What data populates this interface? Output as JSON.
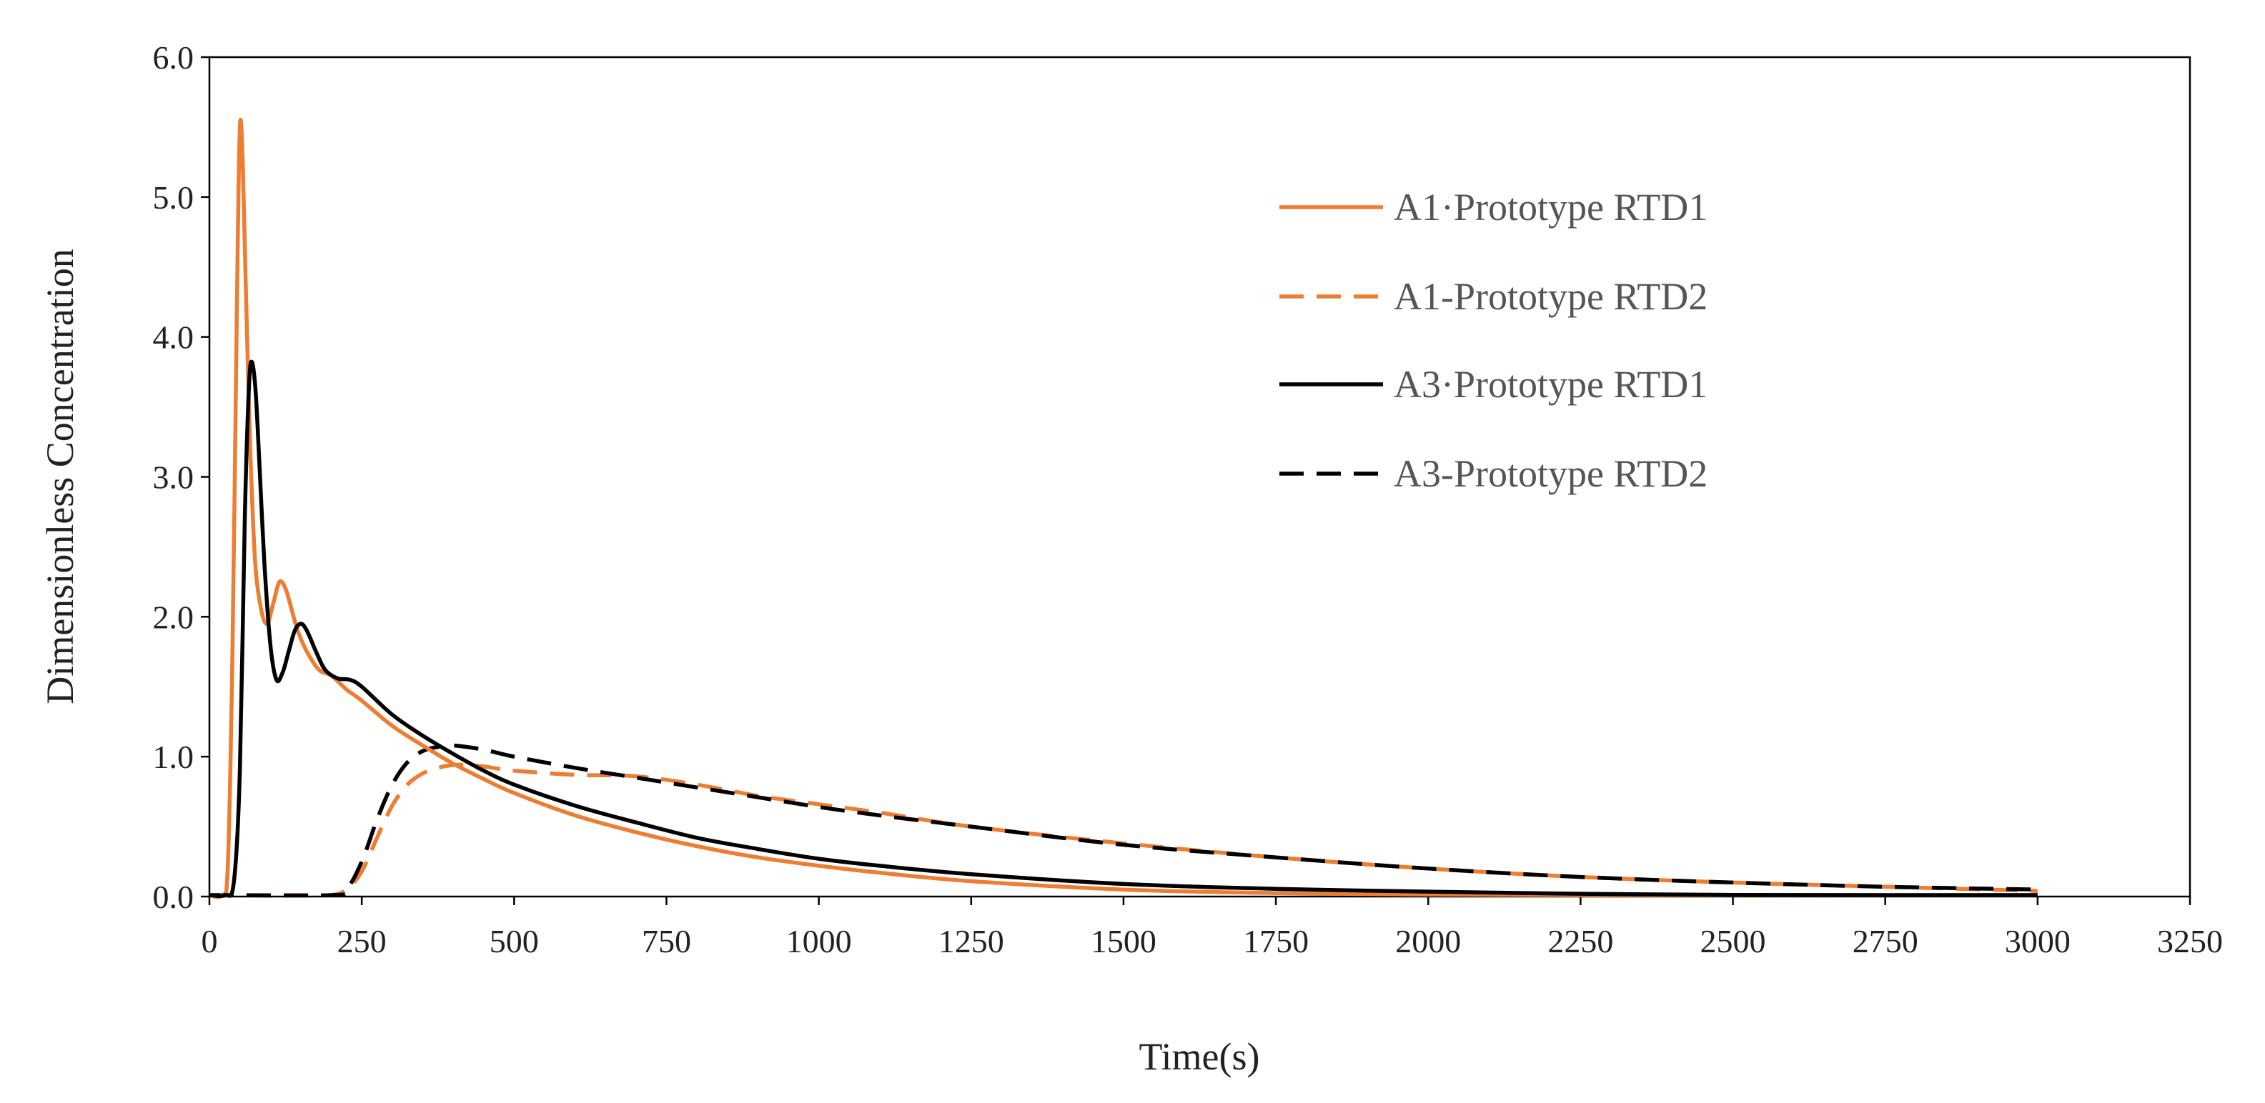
{
  "chart_data": {
    "type": "line",
    "title": "",
    "xlabel": "Time(s)",
    "ylabel": "Dimensionless Concentration",
    "xlim": [
      0,
      3250
    ],
    "ylim": [
      0,
      6
    ],
    "x_ticks": [
      0,
      250,
      500,
      750,
      1000,
      1250,
      1500,
      1750,
      2000,
      2250,
      2500,
      2750,
      3000,
      3250
    ],
    "x_tick_labels": [
      "0",
      "250",
      "500",
      "750",
      "1000",
      "1250",
      "1500",
      "1750",
      "2000",
      "2250",
      "2500",
      "2750",
      "3000",
      "3250"
    ],
    "y_ticks": [
      0,
      1,
      2,
      3,
      4,
      5,
      6
    ],
    "y_tick_labels": [
      "0.0",
      "1.0",
      "2.0",
      "3.0",
      "4.0",
      "5.0",
      "6.0"
    ],
    "grid": false,
    "legend_position": "top-right",
    "series": [
      {
        "name": "A1·Prototype RTD1",
        "color": "#ED7D31",
        "dash": "solid",
        "x": [
          0,
          20,
          30,
          38,
          45,
          50,
          55,
          60,
          67,
          75,
          85,
          95,
          105,
          115,
          125,
          135,
          145,
          160,
          180,
          200,
          225,
          250,
          300,
          350,
          400,
          450,
          500,
          600,
          700,
          800,
          900,
          1000,
          1100,
          1250,
          1500,
          1750,
          2000,
          2250,
          2500,
          2750,
          3000
        ],
        "y": [
          0,
          0,
          0.2,
          1.8,
          4.2,
          5.5,
          5.2,
          4.3,
          3.2,
          2.4,
          2.05,
          1.95,
          2.1,
          2.25,
          2.2,
          2.05,
          1.9,
          1.75,
          1.62,
          1.58,
          1.48,
          1.4,
          1.22,
          1.08,
          0.95,
          0.84,
          0.74,
          0.58,
          0.46,
          0.36,
          0.28,
          0.22,
          0.17,
          0.11,
          0.05,
          0.025,
          0.015,
          0.01,
          0.005,
          0.003,
          0.002
        ]
      },
      {
        "name": "A1-Prototype RTD2",
        "color": "#ED7D31",
        "dash": "dashed",
        "x": [
          0,
          150,
          200,
          225,
          250,
          275,
          300,
          325,
          350,
          375,
          400,
          425,
          450,
          500,
          600,
          700,
          800,
          900,
          1000,
          1100,
          1250,
          1500,
          1750,
          2000,
          2250,
          2500,
          2750,
          3000
        ],
        "y": [
          0,
          0,
          0.01,
          0.05,
          0.18,
          0.42,
          0.65,
          0.8,
          0.88,
          0.92,
          0.94,
          0.94,
          0.93,
          0.9,
          0.87,
          0.86,
          0.8,
          0.72,
          0.66,
          0.6,
          0.5,
          0.38,
          0.28,
          0.2,
          0.14,
          0.1,
          0.07,
          0.04
        ]
      },
      {
        "name": "A3·Prototype RTD1",
        "color": "#000000",
        "dash": "solid",
        "x": [
          0,
          25,
          40,
          50,
          58,
          65,
          70,
          76,
          82,
          90,
          100,
          110,
          120,
          130,
          140,
          150,
          160,
          175,
          190,
          210,
          230,
          250,
          300,
          350,
          400,
          450,
          500,
          600,
          700,
          800,
          900,
          1000,
          1100,
          1250,
          1500,
          1750,
          2000,
          2250,
          2500,
          2750,
          3000
        ],
        "y": [
          0,
          0,
          0.1,
          0.9,
          2.7,
          3.65,
          3.82,
          3.6,
          3.1,
          2.4,
          1.8,
          1.55,
          1.6,
          1.75,
          1.9,
          1.95,
          1.9,
          1.75,
          1.62,
          1.56,
          1.55,
          1.5,
          1.3,
          1.15,
          1.02,
          0.9,
          0.8,
          0.65,
          0.53,
          0.42,
          0.34,
          0.27,
          0.22,
          0.16,
          0.09,
          0.055,
          0.035,
          0.02,
          0.012,
          0.008,
          0.005
        ]
      },
      {
        "name": "A3-Prototype RTD2",
        "color": "#000000",
        "dash": "dashed",
        "x": [
          0,
          200,
          225,
          250,
          275,
          300,
          325,
          350,
          375,
          400,
          450,
          500,
          600,
          700,
          800,
          900,
          1000,
          1100,
          1250,
          1500,
          1750,
          2000,
          2250,
          2500,
          2750,
          3000
        ],
        "y": [
          0,
          0,
          0.05,
          0.25,
          0.55,
          0.8,
          0.96,
          1.04,
          1.07,
          1.08,
          1.05,
          1.0,
          0.92,
          0.85,
          0.78,
          0.71,
          0.64,
          0.58,
          0.5,
          0.37,
          0.28,
          0.2,
          0.14,
          0.1,
          0.07,
          0.05
        ]
      }
    ]
  }
}
